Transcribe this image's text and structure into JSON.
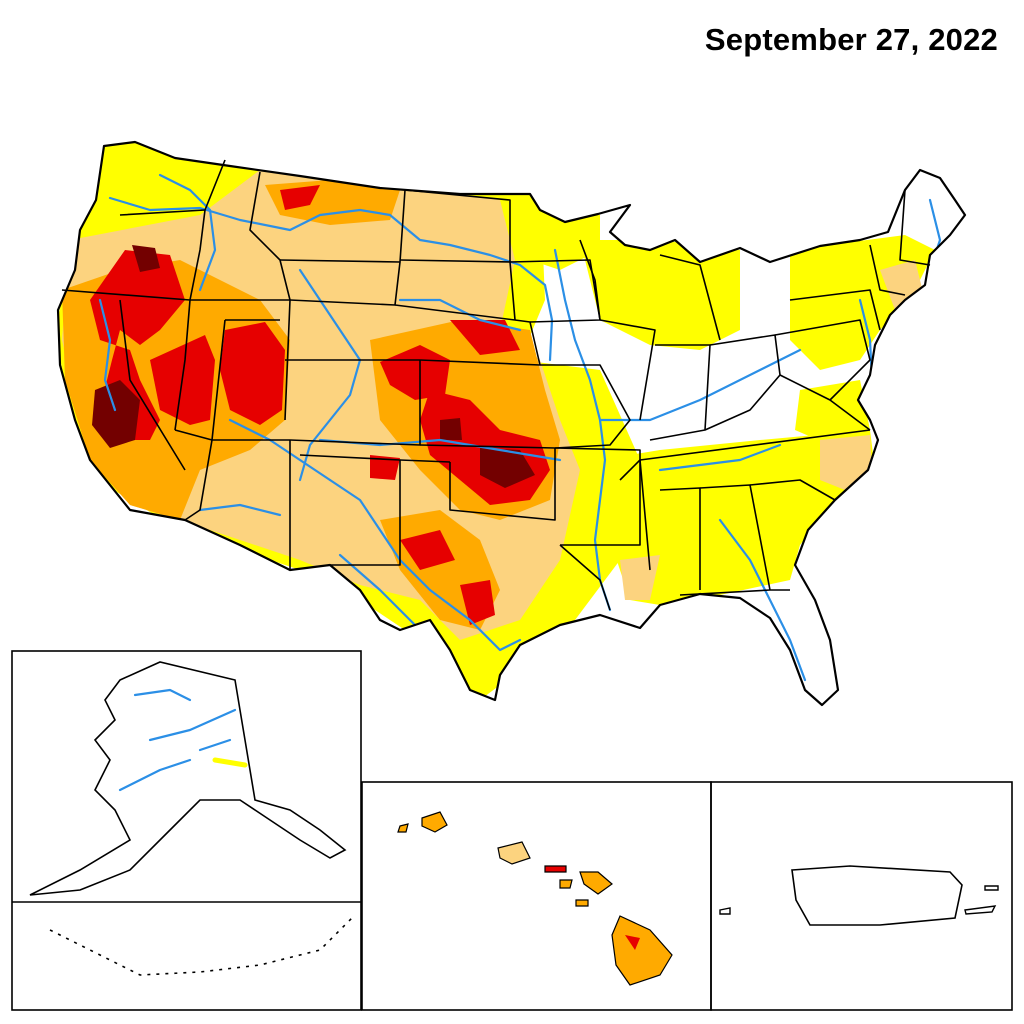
{
  "title": "September 27, 2022",
  "colors": {
    "D0": "#ffff00",
    "D1": "#fcd37f",
    "D2": "#ffaa00",
    "D3": "#e60000",
    "D4": "#730000",
    "water": "#2b8fe6",
    "border": "#000000"
  },
  "regions": [
    "contiguous-us",
    "alaska",
    "hawaii",
    "puerto-rico"
  ]
}
